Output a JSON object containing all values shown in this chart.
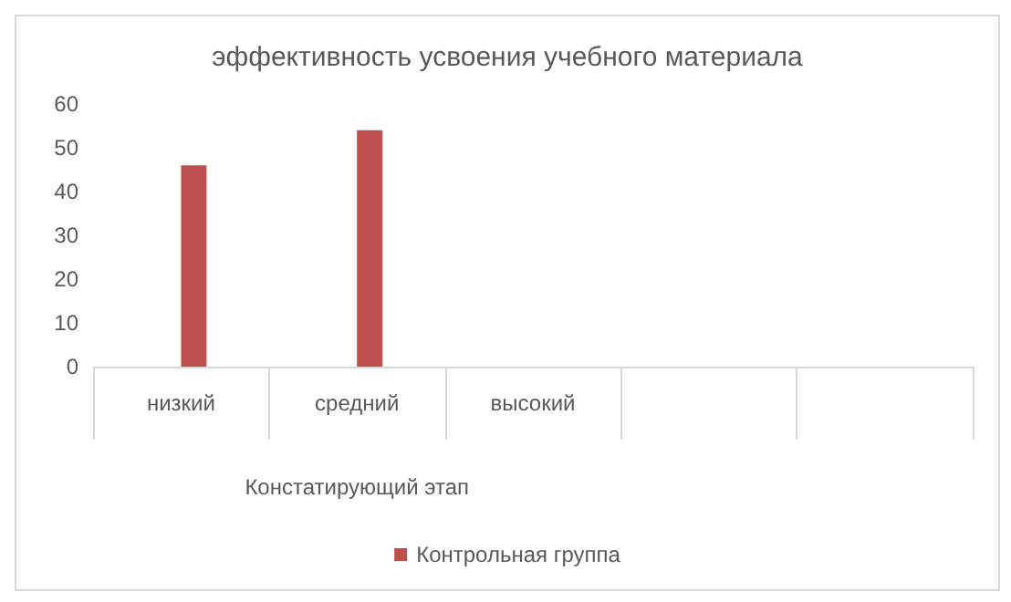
{
  "chart_data": {
    "type": "bar",
    "title": "эффективность усвоения учебного материала",
    "xlabel": "Констатирующий этап",
    "categories": [
      "низкий",
      "средний",
      "высокий",
      null,
      null
    ],
    "series": [
      {
        "color": "#4f81bd",
        "values": [
          null,
          null,
          null,
          null,
          null
        ]
      },
      {
        "name": "Контрольная группа",
        "color": "#c0504d",
        "values": [
          46,
          54,
          0,
          null,
          null
        ]
      }
    ],
    "ylim": [
      0,
      60
    ],
    "yticks": [
      0,
      10,
      20,
      30,
      40,
      50,
      60
    ],
    "grid": false,
    "legend": "bottom"
  }
}
